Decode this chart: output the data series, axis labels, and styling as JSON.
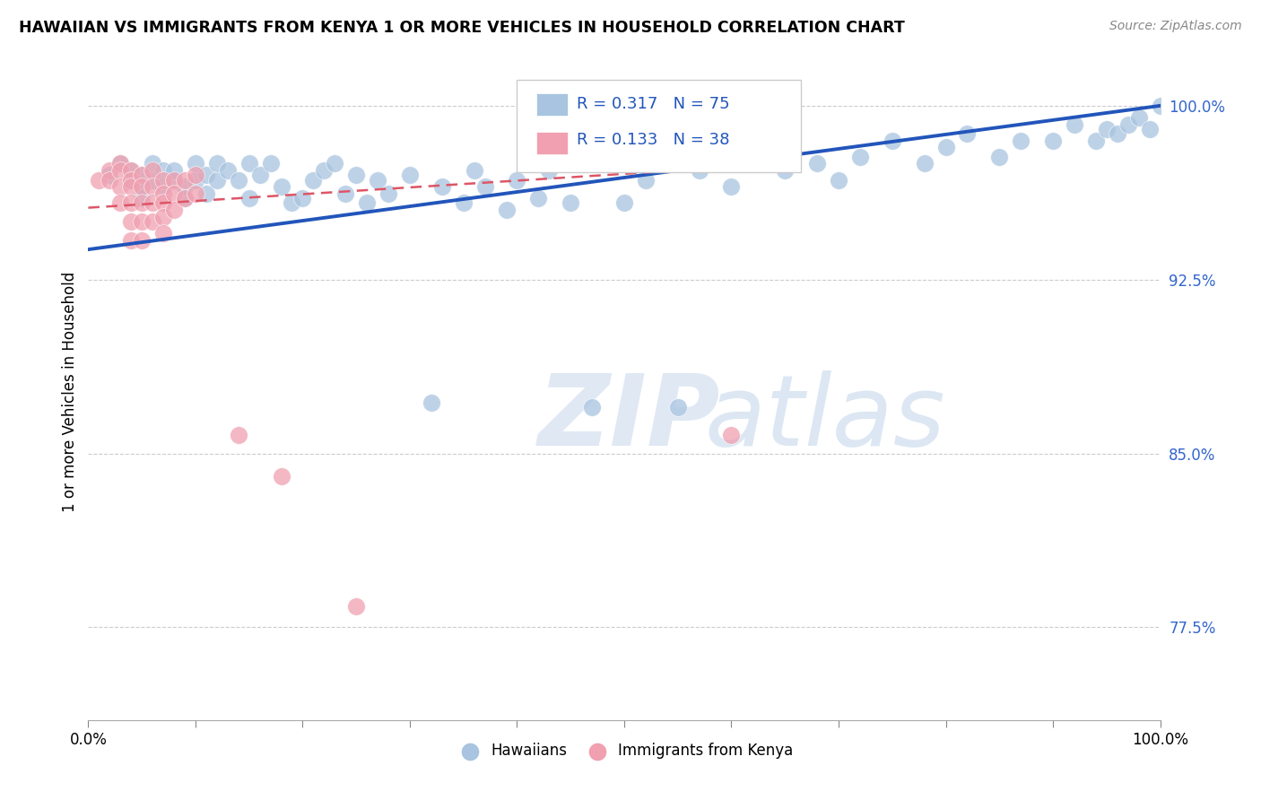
{
  "title": "HAWAIIAN VS IMMIGRANTS FROM KENYA 1 OR MORE VEHICLES IN HOUSEHOLD CORRELATION CHART",
  "source": "Source: ZipAtlas.com",
  "ylabel": "1 or more Vehicles in Household",
  "xlim": [
    0.0,
    1.0
  ],
  "ylim": [
    0.735,
    1.018
  ],
  "yticks": [
    0.775,
    0.85,
    0.925,
    1.0
  ],
  "ytick_labels": [
    "77.5%",
    "85.0%",
    "92.5%",
    "100.0%"
  ],
  "xticks": [
    0.0,
    0.1,
    0.2,
    0.3,
    0.4,
    0.5,
    0.6,
    0.7,
    0.8,
    0.9,
    1.0
  ],
  "xtick_labels": [
    "0.0%",
    "",
    "",
    "",
    "",
    "",
    "",
    "",
    "",
    "",
    "100.0%"
  ],
  "hawaiians_color": "#a8c4e0",
  "kenya_color": "#f0a0b0",
  "trend_blue": "#2255bb",
  "trend_pink": "#dd5566",
  "legend_r1": "R = 0.317",
  "legend_n1": "N = 75",
  "legend_r2": "R = 0.133",
  "legend_n2": "N = 38",
  "hawaiians_x": [
    0.02,
    0.03,
    0.04,
    0.04,
    0.05,
    0.05,
    0.05,
    0.06,
    0.06,
    0.07,
    0.07,
    0.08,
    0.08,
    0.09,
    0.09,
    0.1,
    0.1,
    0.11,
    0.11,
    0.12,
    0.12,
    0.13,
    0.14,
    0.15,
    0.15,
    0.16,
    0.17,
    0.18,
    0.19,
    0.2,
    0.21,
    0.22,
    0.23,
    0.24,
    0.25,
    0.26,
    0.27,
    0.28,
    0.3,
    0.32,
    0.33,
    0.35,
    0.36,
    0.37,
    0.39,
    0.4,
    0.42,
    0.43,
    0.45,
    0.47,
    0.5,
    0.52,
    0.55,
    0.57,
    0.6,
    0.62,
    0.65,
    0.68,
    0.7,
    0.72,
    0.75,
    0.78,
    0.8,
    0.82,
    0.85,
    0.87,
    0.9,
    0.92,
    0.94,
    0.95,
    0.96,
    0.97,
    0.98,
    0.99,
    1.0
  ],
  "hawaiians_y": [
    0.97,
    0.975,
    0.972,
    0.968,
    0.965,
    0.97,
    0.96,
    0.975,
    0.968,
    0.972,
    0.965,
    0.968,
    0.972,
    0.96,
    0.965,
    0.968,
    0.975,
    0.97,
    0.962,
    0.968,
    0.975,
    0.972,
    0.968,
    0.975,
    0.96,
    0.97,
    0.975,
    0.965,
    0.958,
    0.96,
    0.968,
    0.972,
    0.975,
    0.962,
    0.97,
    0.958,
    0.968,
    0.962,
    0.97,
    0.872,
    0.965,
    0.958,
    0.972,
    0.965,
    0.955,
    0.968,
    0.96,
    0.972,
    0.958,
    0.87,
    0.958,
    0.968,
    0.87,
    0.972,
    0.965,
    0.978,
    0.972,
    0.975,
    0.968,
    0.978,
    0.985,
    0.975,
    0.982,
    0.988,
    0.978,
    0.985,
    0.985,
    0.992,
    0.985,
    0.99,
    0.988,
    0.992,
    0.995,
    0.99,
    1.0
  ],
  "kenya_x": [
    0.01,
    0.02,
    0.02,
    0.03,
    0.03,
    0.03,
    0.03,
    0.04,
    0.04,
    0.04,
    0.04,
    0.04,
    0.04,
    0.05,
    0.05,
    0.05,
    0.05,
    0.05,
    0.06,
    0.06,
    0.06,
    0.06,
    0.07,
    0.07,
    0.07,
    0.07,
    0.07,
    0.08,
    0.08,
    0.08,
    0.09,
    0.09,
    0.1,
    0.1,
    0.14,
    0.18,
    0.25,
    0.6
  ],
  "kenya_y": [
    0.968,
    0.972,
    0.968,
    0.975,
    0.972,
    0.965,
    0.958,
    0.972,
    0.968,
    0.965,
    0.958,
    0.95,
    0.942,
    0.97,
    0.965,
    0.958,
    0.95,
    0.942,
    0.972,
    0.965,
    0.958,
    0.95,
    0.968,
    0.962,
    0.958,
    0.952,
    0.945,
    0.968,
    0.962,
    0.955,
    0.968,
    0.96,
    0.97,
    0.962,
    0.858,
    0.84,
    0.784,
    0.858
  ],
  "blue_trend_x": [
    0.0,
    1.0
  ],
  "blue_trend_y": [
    0.938,
    1.0
  ],
  "pink_trend_x": [
    0.0,
    0.65
  ],
  "pink_trend_y": [
    0.956,
    0.975
  ]
}
